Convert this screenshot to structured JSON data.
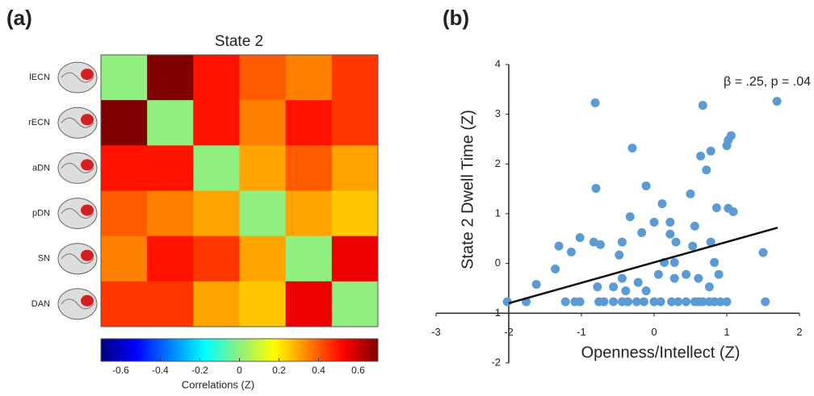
{
  "chart_data": [
    {
      "type": "heatmap",
      "panel": "(a)",
      "title": "State 2",
      "categories": [
        "lECN",
        "rECN",
        "aDN",
        "pDN",
        "SN",
        "DAN"
      ],
      "values": [
        [
          0,
          0.7,
          0.5,
          0.4,
          0.35,
          0.45
        ],
        [
          0.7,
          0,
          0.5,
          0.35,
          0.5,
          0.45
        ],
        [
          0.5,
          0.5,
          0,
          0.3,
          0.4,
          0.3
        ],
        [
          0.4,
          0.35,
          0.3,
          0,
          0.3,
          0.25
        ],
        [
          0.35,
          0.5,
          0.45,
          0.3,
          0,
          0.55
        ],
        [
          0.45,
          0.45,
          0.3,
          0.25,
          0.55,
          0
        ]
      ],
      "colormap": [
        "#00007f",
        "#0000ff",
        "#007fff",
        "#00ffff",
        "#8fef7f",
        "#ffff00",
        "#ff7f00",
        "#ff0000",
        "#7f0000"
      ],
      "xlim": [
        -0.7,
        0.7
      ],
      "xticks": [
        -0.6,
        -0.4,
        -0.2,
        0,
        0.2,
        0.4,
        0.6
      ],
      "colorbar_label": "Correlations (Z)"
    },
    {
      "type": "scatter",
      "panel": "(b)",
      "annotation": "β = .25, p = .04",
      "x_label": "Openness/Intellect (Z)",
      "y_label": "State 2 Dwell Time (Z)",
      "color": "#5b9bd5",
      "x": [
        -2.02,
        -1.76,
        -1.22,
        -1.09,
        -1.02,
        -0.76,
        -0.69,
        -0.56,
        -0.44,
        -0.36,
        -0.24,
        -0.14,
        0,
        0.09,
        0.24,
        0.33,
        0.44,
        0.56,
        0.61,
        0.67,
        0.76,
        0.83,
        0.91,
        1.0,
        1.53,
        -1.62,
        -1.36,
        -1.31,
        -1.02,
        -1.14,
        -0.83,
        -0.74,
        -0.48,
        -0.44,
        -0.33,
        -0.17,
        -0.11,
        0.11,
        0,
        0.22,
        0.14,
        0.22,
        0.3,
        0.5,
        0.53,
        0.56,
        0.64,
        0.72,
        0.78,
        0.67,
        1.0,
        1.06,
        1.02,
        1.69,
        0.86,
        1.02,
        1.09,
        1.5,
        -0.8,
        -0.81,
        -0.3,
        0.78,
        0.83,
        0.89,
        0.76,
        0.61,
        0.44,
        0.28,
        0.06,
        -0.11,
        -0.22,
        -0.44,
        -0.56,
        -0.39,
        -0.78,
        0.28
      ],
      "values": [
        -0.77,
        -0.77,
        -0.77,
        -0.77,
        -0.77,
        -0.77,
        -0.77,
        -0.77,
        -0.77,
        -0.77,
        -0.77,
        -0.77,
        -0.77,
        -0.77,
        -0.77,
        -0.77,
        -0.77,
        -0.77,
        -0.77,
        -0.77,
        -0.77,
        -0.77,
        -0.77,
        -0.77,
        -0.77,
        -0.42,
        -0.11,
        0.35,
        0.52,
        0.23,
        0.43,
        0.38,
        0.17,
        0.43,
        0.94,
        0.62,
        1.56,
        1.2,
        0.83,
        0.83,
        0.02,
        0.59,
        0.43,
        1.4,
        0.35,
        0.75,
        2.16,
        1.88,
        2.26,
        3.18,
        2.37,
        2.57,
        2.48,
        3.26,
        1.12,
        1.11,
        1.04,
        0.22,
        1.51,
        3.23,
        2.32,
        0.43,
        0.02,
        -0.22,
        -0.47,
        -0.3,
        -0.22,
        -0.3,
        -0.22,
        -0.55,
        -0.38,
        -0.3,
        -0.47,
        -0.55,
        -0.47,
        0.02
      ],
      "trend_line": {
        "x": [
          -2,
          1.7
        ],
        "y": [
          -0.8,
          0.72
        ]
      },
      "axis_cross": [
        -2,
        -1
      ],
      "xlim": [
        -3,
        2
      ],
      "xticks": [
        -3,
        -2,
        -1,
        0,
        1,
        2
      ],
      "ylim": [
        -2,
        4
      ],
      "yticks": [
        -2,
        -1,
        0,
        1,
        2,
        3,
        4
      ]
    }
  ]
}
